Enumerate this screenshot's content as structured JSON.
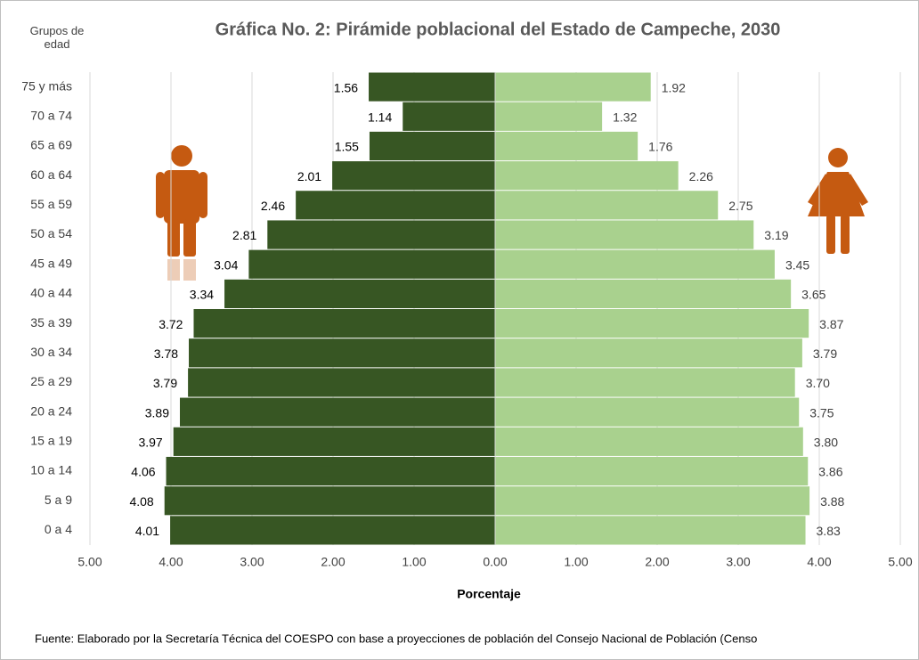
{
  "chart_data": {
    "type": "pyramid",
    "title": "Gráfica No. 2: Pirámide poblacional del Estado de Campeche, 2030",
    "y_label": "Grupos de edad",
    "x_label": "Porcentaje",
    "source": "Fuente: Elaborado por la Secretaría Técnica del COESPO con base a proyecciones de población del Consejo Nacional de Población (Censo",
    "categories": [
      "75 y más",
      "70 a 74",
      "65 a 69",
      "60 a 64",
      "55 a 59",
      "50 a 54",
      "45 a 49",
      "40 a 44",
      "35 a 39",
      "30 a 34",
      "25 a 29",
      "20 a 24",
      "15 a 19",
      "10 a 14",
      "5 a 9",
      "0 a 4"
    ],
    "series": [
      {
        "side": "left",
        "color": "#375623",
        "values": [
          1.56,
          1.14,
          1.55,
          2.01,
          2.46,
          2.81,
          3.04,
          3.34,
          3.72,
          3.78,
          3.79,
          3.89,
          3.97,
          4.06,
          4.08,
          4.01
        ],
        "value_labels": [
          "1.56",
          "1.14",
          "1.55",
          "2.01",
          "2.46",
          "2.81",
          "3.04",
          "3.34",
          "3.72",
          "3.78",
          "3.79",
          "3.89",
          "3.97",
          "4.06",
          "4.08",
          "4.01"
        ]
      },
      {
        "side": "right",
        "color": "#a9d18e",
        "values": [
          1.92,
          1.32,
          1.76,
          2.26,
          2.75,
          3.19,
          3.45,
          3.65,
          3.87,
          3.79,
          3.7,
          3.75,
          3.8,
          3.86,
          3.88,
          3.83
        ],
        "value_labels": [
          "1.92",
          "1.32",
          "1.76",
          "2.26",
          "2.75",
          "3.19",
          "3.45",
          "3.65",
          "3.87",
          "3.79",
          "3.70",
          "3.75",
          "3.80",
          "3.86",
          "3.88",
          "3.83"
        ]
      }
    ],
    "xlim": [
      -5,
      5
    ],
    "xticks": [
      {
        "value": -5,
        "label": "5.00"
      },
      {
        "value": -4,
        "label": "4.00"
      },
      {
        "value": -3,
        "label": "3.00"
      },
      {
        "value": -2,
        "label": "2.00"
      },
      {
        "value": -1,
        "label": "1.00"
      },
      {
        "value": 0,
        "label": "0.00"
      },
      {
        "value": 1,
        "label": "1.00"
      },
      {
        "value": 2,
        "label": "2.00"
      },
      {
        "value": 3,
        "label": "3.00"
      },
      {
        "value": 4,
        "label": "4.00"
      },
      {
        "value": 5,
        "label": "5.00"
      }
    ],
    "grid": true
  }
}
